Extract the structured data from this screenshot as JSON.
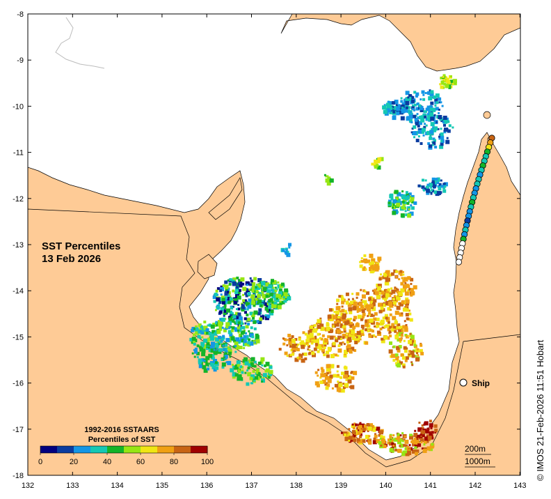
{
  "map": {
    "title_line1": "SST Percentiles",
    "title_line2": "13 Feb 2026",
    "credit": "© IMOS 21-Feb-2026 11:51 Hobart",
    "x_ticks": [
      "132",
      "133",
      "134",
      "135",
      "136",
      "137",
      "138",
      "139",
      "140",
      "141",
      "142",
      "143"
    ],
    "y_ticks": [
      "-8",
      "-9",
      "-10",
      "-11",
      "-12",
      "-13",
      "-14",
      "-15",
      "-16",
      "-17",
      "-18"
    ],
    "ship_label": "Ship",
    "scale_labels": [
      "200m",
      "1000m"
    ],
    "land_color": "#fecb96"
  },
  "legend": {
    "title_line1": "1992-2016 SSTAARS",
    "title_line2": "Percentiles of SST",
    "tick_labels": [
      "0",
      "20",
      "40",
      "60",
      "80",
      "100"
    ],
    "colors": [
      "#00007f",
      "#0a3ca0",
      "#1496e6",
      "#14c8b4",
      "#14b428",
      "#96e614",
      "#f0e614",
      "#f0a014",
      "#c86414",
      "#a00000"
    ]
  }
}
